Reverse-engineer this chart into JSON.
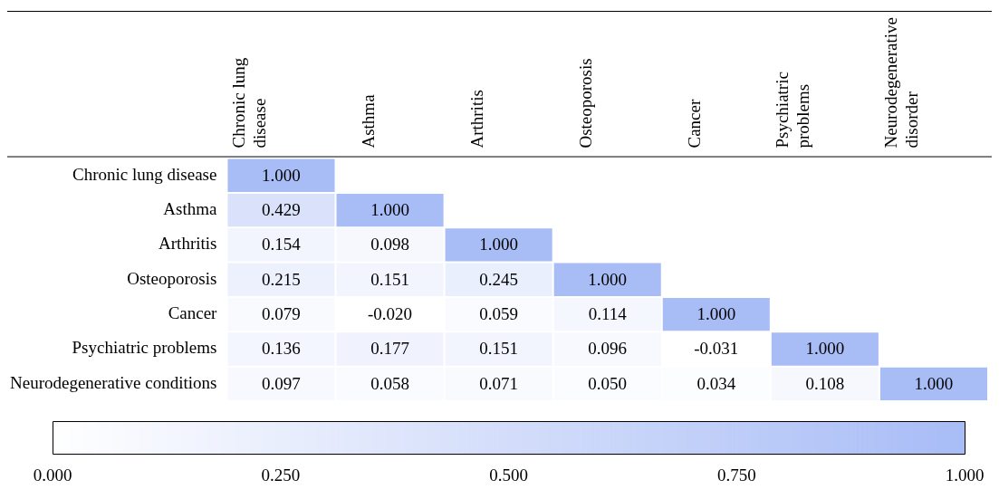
{
  "chart_data": {
    "type": "heatmap",
    "categories": [
      "Chronic lung disease",
      "Asthma",
      "Arthritis",
      "Osteoporosis",
      "Cancer",
      "Psychiatric problems",
      "Neurodegenerative disorder"
    ],
    "y_categories": [
      "Chronic lung disease",
      "Asthma",
      "Arthritis",
      "Osteoporosis",
      "Cancer",
      "Psychiatric problems",
      "Neurodegenerative conditions"
    ],
    "cells": [
      [
        1.0,
        null,
        null,
        null,
        null,
        null,
        null
      ],
      [
        0.429,
        1.0,
        null,
        null,
        null,
        null,
        null
      ],
      [
        0.154,
        0.098,
        1.0,
        null,
        null,
        null,
        null
      ],
      [
        0.215,
        0.151,
        0.245,
        1.0,
        null,
        null,
        null
      ],
      [
        0.079,
        -0.02,
        0.059,
        0.114,
        1.0,
        null,
        null
      ],
      [
        0.136,
        0.177,
        0.151,
        0.096,
        -0.031,
        1.0,
        null
      ],
      [
        0.097,
        0.058,
        0.071,
        0.05,
        0.034,
        0.108,
        1.0
      ]
    ],
    "cell_labels": [
      [
        "1.000",
        null,
        null,
        null,
        null,
        null,
        null
      ],
      [
        "0.429",
        "1.000",
        null,
        null,
        null,
        null,
        null
      ],
      [
        "0.154",
        "0.098",
        "1.000",
        null,
        null,
        null,
        null
      ],
      [
        "0.215",
        "0.151",
        "0.245",
        "1.000",
        null,
        null,
        null
      ],
      [
        "0.079",
        "-0.020",
        "0.059",
        "0.114",
        "1.000",
        null,
        null
      ],
      [
        "0.136",
        "0.177",
        "0.151",
        "0.096",
        "-0.031",
        "1.000",
        null
      ],
      [
        "0.097",
        "0.058",
        "0.071",
        "0.050",
        "0.034",
        "0.108",
        "1.000"
      ]
    ],
    "clim": [
      0,
      1
    ],
    "cticks": [
      {
        "value": 0,
        "label": "0.000"
      },
      {
        "value": 0.25,
        "label": "0.250"
      },
      {
        "value": 0.5,
        "label": "0.500"
      },
      {
        "value": 0.75,
        "label": "0.750"
      },
      {
        "value": 1,
        "label": "1.000"
      }
    ]
  }
}
